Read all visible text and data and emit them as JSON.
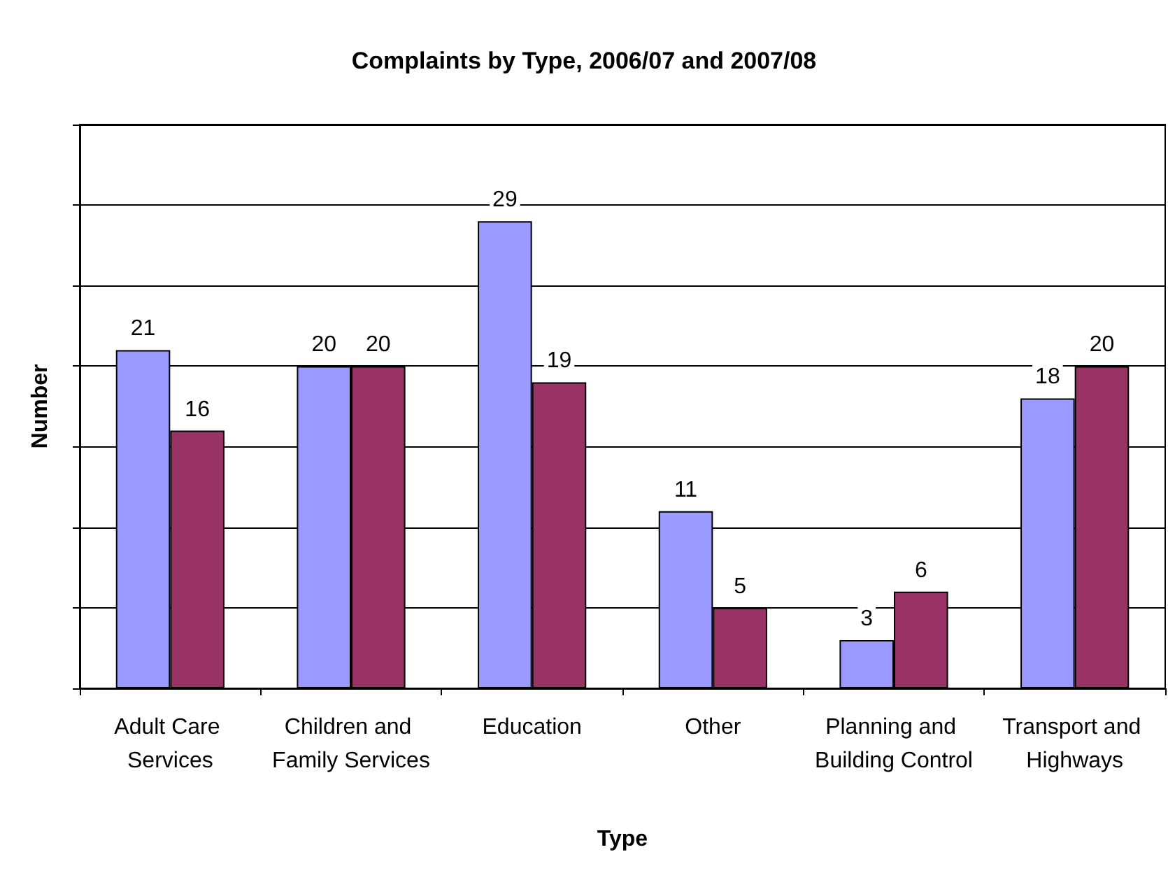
{
  "chart_data": {
    "type": "bar",
    "title": "Complaints by Type, 2006/07 and 2007/08",
    "xlabel": "Type",
    "ylabel": "Number",
    "categories": [
      "Adult Care Services",
      "Children and Family Services",
      "Education",
      "Other",
      "Planning and Building Control",
      "Transport and Highways"
    ],
    "series": [
      {
        "color": "#9999ff",
        "values": [
          21,
          20,
          29,
          11,
          3,
          18
        ]
      },
      {
        "color": "#993366",
        "values": [
          16,
          20,
          19,
          5,
          6,
          20
        ]
      }
    ],
    "ylim": [
      0,
      35
    ],
    "yticks": [
      {
        "value": 0,
        "label": null
      },
      {
        "value": 5,
        "label": null
      },
      {
        "value": 10,
        "label": null
      },
      {
        "value": 15,
        "label": null
      },
      {
        "value": 20,
        "label": null
      },
      {
        "value": 25,
        "label": null
      },
      {
        "value": 30,
        "label": null
      },
      {
        "value": 35,
        "label": null
      }
    ],
    "tick_labels": "x",
    "grid": "y",
    "data_labels": true
  }
}
